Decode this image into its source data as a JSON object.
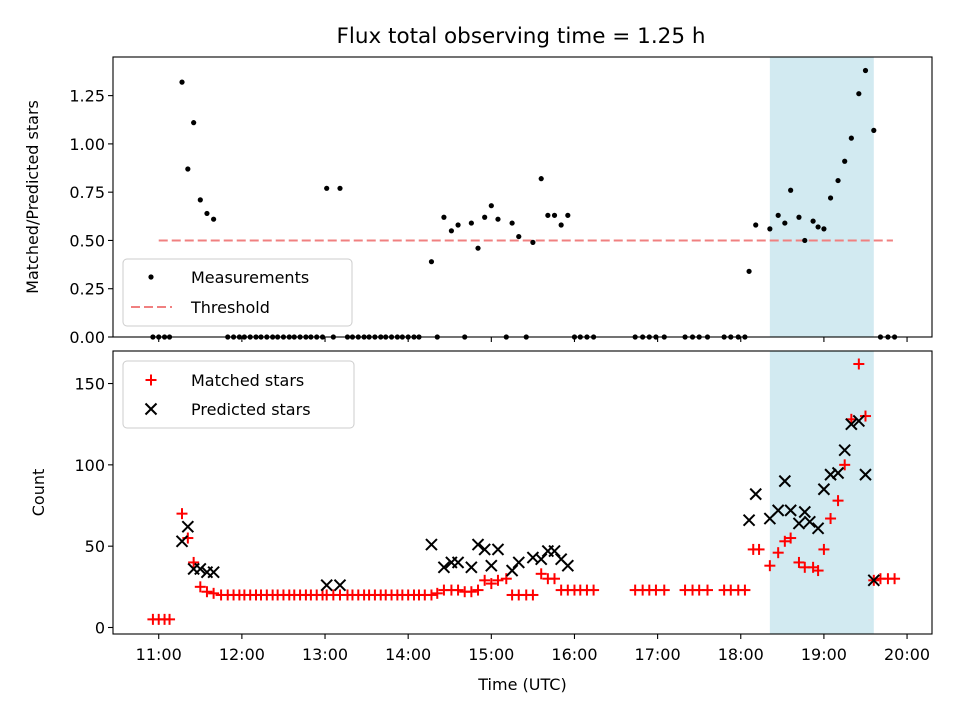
{
  "title": "Flux total observing time = 1.25 h",
  "highlight": {
    "x_start": 18.35,
    "x_end": 19.6,
    "color": "#add8e6"
  },
  "colors": {
    "measurement": "#000000",
    "threshold": "#f08080",
    "matched": "#ff0000",
    "predicted": "#000000"
  },
  "chart_data": [
    {
      "type": "scatter",
      "ylabel": "Matched/Predicted stars",
      "ylim": [
        0,
        1.45
      ],
      "yticks": [
        0,
        0.25,
        0.5,
        0.75,
        1.0,
        1.25
      ],
      "ytick_labels": [
        "0.00",
        "0.25",
        "0.50",
        "0.75",
        "1.00",
        "1.25",
        ""
      ],
      "legend": {
        "position": "lower-left",
        "measurements": "Measurements",
        "threshold": "Threshold"
      },
      "threshold": {
        "value": 0.5,
        "x_start": 11.0,
        "x_end": 19.83
      },
      "measurements": [
        [
          10.93,
          0
        ],
        [
          11.0,
          0
        ],
        [
          11.07,
          0
        ],
        [
          11.13,
          0
        ],
        [
          11.28,
          1.32
        ],
        [
          11.35,
          0.87
        ],
        [
          11.42,
          1.11
        ],
        [
          11.5,
          0.71
        ],
        [
          11.58,
          0.64
        ],
        [
          11.66,
          0.61
        ],
        [
          11.83,
          0
        ],
        [
          11.9,
          0
        ],
        [
          11.97,
          0
        ],
        [
          12.03,
          0
        ],
        [
          12.1,
          0
        ],
        [
          12.17,
          0
        ],
        [
          12.23,
          0
        ],
        [
          12.3,
          0
        ],
        [
          12.37,
          0
        ],
        [
          12.43,
          0
        ],
        [
          12.5,
          0
        ],
        [
          12.57,
          0
        ],
        [
          12.63,
          0
        ],
        [
          12.7,
          0
        ],
        [
          12.77,
          0
        ],
        [
          12.83,
          0
        ],
        [
          12.9,
          0
        ],
        [
          12.97,
          0
        ],
        [
          13.02,
          0.77
        ],
        [
          13.1,
          0
        ],
        [
          13.18,
          0.77
        ],
        [
          13.27,
          0
        ],
        [
          13.33,
          0
        ],
        [
          13.4,
          0
        ],
        [
          13.47,
          0
        ],
        [
          13.53,
          0
        ],
        [
          13.6,
          0
        ],
        [
          13.67,
          0
        ],
        [
          13.73,
          0
        ],
        [
          13.8,
          0
        ],
        [
          13.87,
          0
        ],
        [
          13.93,
          0
        ],
        [
          14.0,
          0
        ],
        [
          14.07,
          0
        ],
        [
          14.13,
          0
        ],
        [
          14.28,
          0.39
        ],
        [
          14.35,
          0
        ],
        [
          14.43,
          0.62
        ],
        [
          14.52,
          0.55
        ],
        [
          14.6,
          0.58
        ],
        [
          14.68,
          0
        ],
        [
          14.76,
          0.59
        ],
        [
          14.84,
          0.46
        ],
        [
          14.92,
          0.62
        ],
        [
          15.0,
          0.68
        ],
        [
          15.08,
          0.61
        ],
        [
          15.18,
          0
        ],
        [
          15.25,
          0.59
        ],
        [
          15.33,
          0.52
        ],
        [
          15.42,
          0
        ],
        [
          15.5,
          0.49
        ],
        [
          15.6,
          0.82
        ],
        [
          15.68,
          0.63
        ],
        [
          15.76,
          0.63
        ],
        [
          15.84,
          0.58
        ],
        [
          15.92,
          0.63
        ],
        [
          16.0,
          0
        ],
        [
          16.07,
          0
        ],
        [
          16.15,
          0
        ],
        [
          16.23,
          0
        ],
        [
          16.73,
          0
        ],
        [
          16.82,
          0
        ],
        [
          16.9,
          0
        ],
        [
          16.98,
          0
        ],
        [
          17.08,
          0
        ],
        [
          17.33,
          0
        ],
        [
          17.42,
          0
        ],
        [
          17.5,
          0
        ],
        [
          17.6,
          0
        ],
        [
          17.8,
          0
        ],
        [
          17.88,
          0
        ],
        [
          17.97,
          0
        ],
        [
          18.05,
          0
        ],
        [
          18.1,
          0.34
        ],
        [
          18.18,
          0.58
        ],
        [
          18.35,
          0.56
        ],
        [
          18.45,
          0.63
        ],
        [
          18.53,
          0.59
        ],
        [
          18.6,
          0.76
        ],
        [
          18.7,
          0.62
        ],
        [
          18.77,
          0.5
        ],
        [
          18.87,
          0.6
        ],
        [
          18.93,
          0.57
        ],
        [
          19.0,
          0.56
        ],
        [
          19.08,
          0.72
        ],
        [
          19.17,
          0.81
        ],
        [
          19.25,
          0.91
        ],
        [
          19.33,
          1.03
        ],
        [
          19.42,
          1.26
        ],
        [
          19.5,
          1.38
        ],
        [
          19.6,
          1.07
        ],
        [
          19.68,
          0
        ],
        [
          19.77,
          0
        ],
        [
          19.85,
          0
        ]
      ]
    },
    {
      "type": "scatter",
      "ylabel": "Count",
      "xlabel": "Time (UTC)",
      "ylim": [
        -4,
        170
      ],
      "yticks": [
        0,
        50,
        100,
        150
      ],
      "ytick_labels": [
        "0",
        "50",
        "100",
        "150"
      ],
      "xlim": [
        10.45,
        20.3
      ],
      "xticks": [
        11,
        12,
        13,
        14,
        15,
        16,
        17,
        18,
        19,
        20
      ],
      "xtick_labels": [
        "11:00",
        "12:00",
        "13:00",
        "14:00",
        "15:00",
        "16:00",
        "17:00",
        "18:00",
        "19:00",
        "20:00"
      ],
      "legend": {
        "position": "upper-left",
        "matched": "Matched stars",
        "predicted": "Predicted stars"
      },
      "matched": [
        [
          10.93,
          5
        ],
        [
          11.0,
          5
        ],
        [
          11.07,
          5
        ],
        [
          11.13,
          5
        ],
        [
          11.28,
          70
        ],
        [
          11.35,
          55
        ],
        [
          11.42,
          40
        ],
        [
          11.5,
          25
        ],
        [
          11.58,
          22
        ],
        [
          11.66,
          21
        ],
        [
          11.75,
          20
        ],
        [
          11.83,
          20
        ],
        [
          11.9,
          20
        ],
        [
          11.97,
          20
        ],
        [
          12.03,
          20
        ],
        [
          12.1,
          20
        ],
        [
          12.17,
          20
        ],
        [
          12.23,
          20
        ],
        [
          12.3,
          20
        ],
        [
          12.37,
          20
        ],
        [
          12.43,
          20
        ],
        [
          12.5,
          20
        ],
        [
          12.57,
          20
        ],
        [
          12.63,
          20
        ],
        [
          12.7,
          20
        ],
        [
          12.77,
          20
        ],
        [
          12.83,
          20
        ],
        [
          12.9,
          20
        ],
        [
          12.97,
          20
        ],
        [
          13.02,
          20
        ],
        [
          13.1,
          20
        ],
        [
          13.18,
          20
        ],
        [
          13.27,
          20
        ],
        [
          13.33,
          20
        ],
        [
          13.4,
          20
        ],
        [
          13.47,
          20
        ],
        [
          13.53,
          20
        ],
        [
          13.6,
          20
        ],
        [
          13.67,
          20
        ],
        [
          13.73,
          20
        ],
        [
          13.8,
          20
        ],
        [
          13.87,
          20
        ],
        [
          13.93,
          20
        ],
        [
          14.0,
          20
        ],
        [
          14.07,
          20
        ],
        [
          14.13,
          20
        ],
        [
          14.2,
          20
        ],
        [
          14.28,
          20
        ],
        [
          14.35,
          21
        ],
        [
          14.43,
          23
        ],
        [
          14.52,
          23
        ],
        [
          14.6,
          23
        ],
        [
          14.68,
          22
        ],
        [
          14.76,
          22
        ],
        [
          14.84,
          23
        ],
        [
          14.92,
          29
        ],
        [
          15.0,
          27
        ],
        [
          15.08,
          29
        ],
        [
          15.18,
          30
        ],
        [
          15.25,
          20
        ],
        [
          15.33,
          20
        ],
        [
          15.42,
          20
        ],
        [
          15.5,
          20
        ],
        [
          15.6,
          33
        ],
        [
          15.68,
          30
        ],
        [
          15.76,
          30
        ],
        [
          15.84,
          23
        ],
        [
          15.92,
          23
        ],
        [
          16.0,
          23
        ],
        [
          16.07,
          23
        ],
        [
          16.15,
          23
        ],
        [
          16.23,
          23
        ],
        [
          16.73,
          23
        ],
        [
          16.82,
          23
        ],
        [
          16.9,
          23
        ],
        [
          16.98,
          23
        ],
        [
          17.08,
          23
        ],
        [
          17.33,
          23
        ],
        [
          17.42,
          23
        ],
        [
          17.5,
          23
        ],
        [
          17.6,
          23
        ],
        [
          17.8,
          23
        ],
        [
          17.88,
          23
        ],
        [
          17.97,
          23
        ],
        [
          18.05,
          23
        ],
        [
          18.15,
          48
        ],
        [
          18.22,
          48
        ],
        [
          18.35,
          38
        ],
        [
          18.45,
          46
        ],
        [
          18.53,
          53
        ],
        [
          18.6,
          55
        ],
        [
          18.7,
          40
        ],
        [
          18.77,
          37
        ],
        [
          18.87,
          37
        ],
        [
          18.93,
          35
        ],
        [
          19.0,
          48
        ],
        [
          19.08,
          67
        ],
        [
          19.17,
          78
        ],
        [
          19.25,
          100
        ],
        [
          19.33,
          128
        ],
        [
          19.42,
          162
        ],
        [
          19.5,
          130
        ],
        [
          19.6,
          29
        ],
        [
          19.68,
          30
        ],
        [
          19.77,
          30
        ],
        [
          19.85,
          30
        ]
      ],
      "predicted": [
        [
          11.28,
          53
        ],
        [
          11.35,
          62
        ],
        [
          11.42,
          36
        ],
        [
          11.5,
          36
        ],
        [
          11.58,
          34
        ],
        [
          11.66,
          34
        ],
        [
          13.02,
          26
        ],
        [
          13.18,
          26
        ],
        [
          14.28,
          51
        ],
        [
          14.43,
          37
        ],
        [
          14.52,
          40
        ],
        [
          14.6,
          40
        ],
        [
          14.76,
          37
        ],
        [
          14.84,
          51
        ],
        [
          14.92,
          48
        ],
        [
          15.0,
          38
        ],
        [
          15.08,
          48
        ],
        [
          15.25,
          35
        ],
        [
          15.33,
          40
        ],
        [
          15.5,
          43
        ],
        [
          15.6,
          42
        ],
        [
          15.68,
          47
        ],
        [
          15.76,
          47
        ],
        [
          15.84,
          42
        ],
        [
          15.92,
          38
        ],
        [
          18.1,
          66
        ],
        [
          18.18,
          82
        ],
        [
          18.35,
          67
        ],
        [
          18.45,
          72
        ],
        [
          18.53,
          90
        ],
        [
          18.6,
          72
        ],
        [
          18.7,
          64
        ],
        [
          18.77,
          71
        ],
        [
          18.83,
          65
        ],
        [
          18.93,
          61
        ],
        [
          19.0,
          85
        ],
        [
          19.08,
          94
        ],
        [
          19.17,
          95
        ],
        [
          19.25,
          109
        ],
        [
          19.33,
          125
        ],
        [
          19.42,
          127
        ],
        [
          19.5,
          94
        ],
        [
          19.6,
          29
        ]
      ]
    }
  ]
}
